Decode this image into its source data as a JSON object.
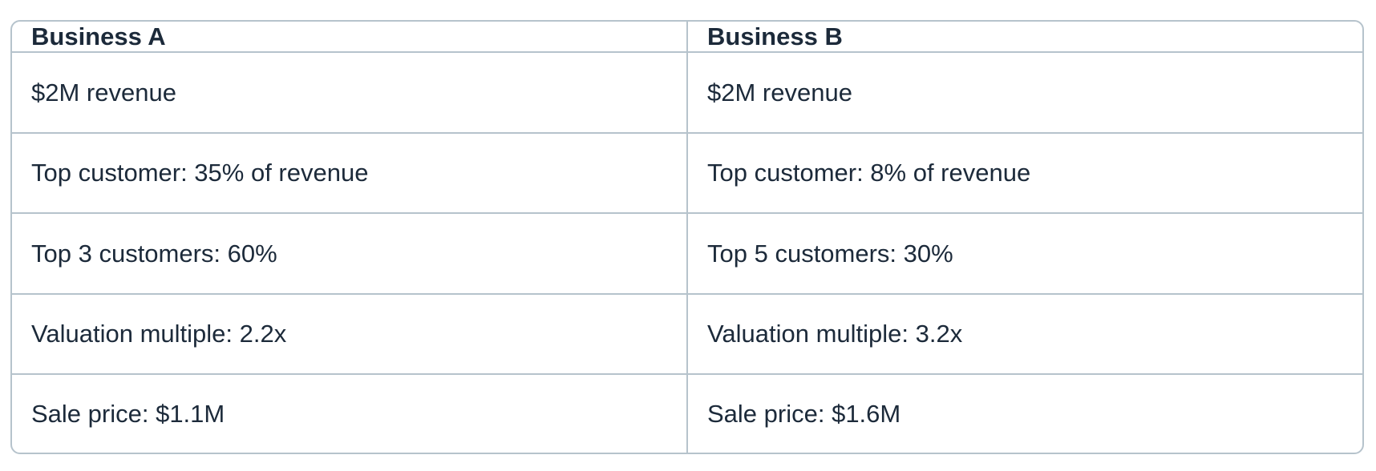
{
  "table": {
    "headers": [
      "Business A",
      "Business B"
    ],
    "rows": [
      [
        "$2M revenue",
        "$2M revenue"
      ],
      [
        "Top customer: 35% of revenue",
        "Top customer: 8% of revenue"
      ],
      [
        "Top 3 customers: 60%",
        "Top 5 customers: 30%"
      ],
      [
        "Valuation multiple: 2.2x",
        "Valuation multiple: 3.2x"
      ],
      [
        "Sale price: $1.1M",
        "Sale price: $1.6M"
      ]
    ]
  }
}
